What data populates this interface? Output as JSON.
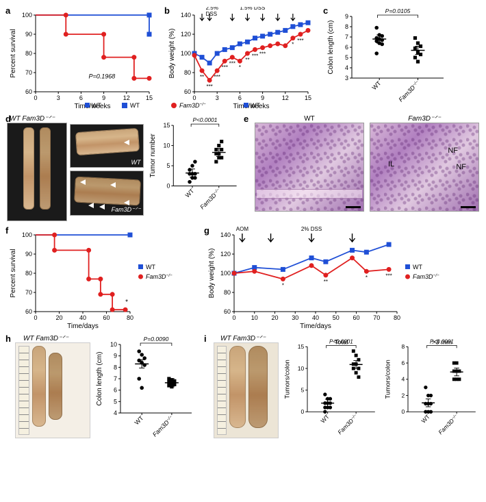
{
  "groups": {
    "wt": {
      "label": "WT",
      "color": "#1f4fd6",
      "marker": "square"
    },
    "ko": {
      "label": "Fam3D⁻ᐟ⁻",
      "label_plain": "Fam3D",
      "color": "#e02020",
      "marker": "circle"
    }
  },
  "panels": {
    "a": {
      "type": "line",
      "xlabel": "Time/weeks",
      "ylabel": "Percent survival",
      "xlim": [
        0,
        15
      ],
      "xticks": [
        0,
        3,
        6,
        9,
        12,
        15
      ],
      "ylim": [
        60,
        100
      ],
      "yticks": [
        60,
        70,
        80,
        90,
        100
      ],
      "pval_text": "P=0.1968",
      "pval_pos": [
        7,
        67
      ],
      "series": {
        "wt": [
          [
            0,
            100
          ],
          [
            15,
            100
          ],
          [
            15,
            90
          ]
        ],
        "ko": [
          [
            0,
            100
          ],
          [
            4,
            100
          ],
          [
            4,
            90
          ],
          [
            9,
            90
          ],
          [
            9,
            78
          ],
          [
            13,
            78
          ],
          [
            13,
            67
          ],
          [
            15,
            67
          ]
        ]
      },
      "marker_x": {
        "wt": [
          15
        ],
        "ko": [
          4,
          9,
          13,
          15
        ]
      }
    },
    "b": {
      "type": "line",
      "xlabel": "Time/weeks",
      "ylabel": "Body weight (%)",
      "xlim": [
        0,
        15
      ],
      "xticks": [
        0,
        3,
        6,
        9,
        12,
        15
      ],
      "ylim": [
        60,
        140
      ],
      "yticks": [
        60,
        80,
        100,
        120,
        140
      ],
      "arrows_x": [
        1,
        2,
        5,
        7,
        9,
        11,
        13
      ],
      "arrow_labels": [
        {
          "x": 1.5,
          "text": "2.5%\nDSS"
        },
        {
          "x": 6,
          "text": "1.5% DSS"
        }
      ],
      "series": {
        "wt": [
          [
            0,
            100
          ],
          [
            1,
            96
          ],
          [
            2,
            90
          ],
          [
            3,
            100
          ],
          [
            4,
            104
          ],
          [
            5,
            106
          ],
          [
            6,
            110
          ],
          [
            7,
            112
          ],
          [
            8,
            116
          ],
          [
            9,
            118
          ],
          [
            10,
            120
          ],
          [
            11,
            122
          ],
          [
            12,
            124
          ],
          [
            13,
            128
          ],
          [
            14,
            130
          ],
          [
            15,
            132
          ]
        ],
        "ko": [
          [
            0,
            98
          ],
          [
            1,
            82
          ],
          [
            2,
            72
          ],
          [
            3,
            82
          ],
          [
            4,
            92
          ],
          [
            5,
            96
          ],
          [
            6,
            92
          ],
          [
            7,
            100
          ],
          [
            8,
            104
          ],
          [
            9,
            106
          ],
          [
            10,
            108
          ],
          [
            11,
            110
          ],
          [
            12,
            108
          ],
          [
            13,
            116
          ],
          [
            14,
            120
          ],
          [
            15,
            124
          ]
        ]
      },
      "sig": [
        [
          1,
          "**"
        ],
        [
          2,
          "***"
        ],
        [
          3,
          "***"
        ],
        [
          4,
          "***"
        ],
        [
          5,
          "***"
        ],
        [
          6,
          "*"
        ],
        [
          7,
          "**"
        ],
        [
          8,
          "***"
        ],
        [
          9,
          "***"
        ],
        [
          13,
          "*"
        ],
        [
          14,
          "***"
        ]
      ]
    },
    "c": {
      "type": "scatter-cat",
      "ylabel": "Colon length (cm)",
      "ylim": [
        3,
        9
      ],
      "yticks": [
        3,
        4,
        5,
        6,
        7,
        8,
        9
      ],
      "pval_text": "P=0.0105",
      "cats": [
        "WT",
        "Fam3D⁻ᐟ⁻"
      ],
      "points": {
        "WT": [
          7.9,
          7.2,
          7.1,
          6.9,
          6.8,
          6.7,
          6.6,
          6.4,
          6.3,
          5.4
        ],
        "Fam3D⁻ᐟ⁻": [
          6.9,
          6.4,
          6.1,
          5.9,
          5.5,
          5.3,
          5.0,
          4.6
        ]
      },
      "means": {
        "WT": 6.8,
        "Fam3D⁻ᐟ⁻": 5.7
      }
    },
    "d": {
      "left_label_top": "WT Fam3D⁻ᐟ⁻",
      "right_labels": [
        "WT",
        "Fam3D⁻ᐟ⁻"
      ],
      "chart": {
        "ylabel": "Tumor number",
        "ylim": [
          0,
          15
        ],
        "yticks": [
          0,
          5,
          10,
          15
        ],
        "pval_text": "P<0.0001",
        "cats": [
          "WT",
          "Fam3D⁻ᐟ⁻"
        ],
        "points": {
          "WT": [
            1,
            2,
            2,
            3,
            3,
            3,
            4,
            5,
            6
          ],
          "Fam3D⁻ᐟ⁻": [
            6,
            7,
            7,
            8,
            8,
            9,
            9,
            10,
            11
          ]
        },
        "means": {
          "WT": 3.2,
          "Fam3D⁻ᐟ⁻": 8.3
        }
      }
    },
    "e": {
      "left_title": "WT",
      "right_title": "Fam3D⁻ᐟ⁻",
      "annot": [
        "IL",
        "NF",
        "NF"
      ]
    },
    "f": {
      "type": "line",
      "xlabel": "Time/days",
      "ylabel": "Percent survival",
      "xlim": [
        0,
        80
      ],
      "xticks": [
        0,
        20,
        40,
        60,
        80
      ],
      "ylim": [
        60,
        100
      ],
      "yticks": [
        60,
        70,
        80,
        90,
        100
      ],
      "series": {
        "wt": [
          [
            0,
            100
          ],
          [
            80,
            100
          ]
        ],
        "ko": [
          [
            0,
            100
          ],
          [
            16,
            100
          ],
          [
            16,
            92
          ],
          [
            45,
            92
          ],
          [
            45,
            77
          ],
          [
            55,
            77
          ],
          [
            55,
            69
          ],
          [
            65,
            69
          ],
          [
            65,
            61
          ],
          [
            76,
            61
          ]
        ]
      },
      "sig_text": "*",
      "sig_pos": [
        76,
        64
      ],
      "marker_x": {
        "wt": [
          80
        ],
        "ko": [
          16,
          45,
          55,
          65,
          76
        ]
      }
    },
    "g": {
      "type": "line",
      "xlabel": "Time/days",
      "ylabel": "Body weight (%)",
      "xlim": [
        0,
        80
      ],
      "xticks": [
        0,
        10,
        20,
        30,
        40,
        50,
        60,
        70,
        80
      ],
      "ylim": [
        60,
        140
      ],
      "yticks": [
        60,
        80,
        100,
        120,
        140
      ],
      "arrows": [
        {
          "x": 4,
          "label": "AOM"
        },
        {
          "x": 18,
          "label": ""
        },
        {
          "x": 38,
          "label": "2% DSS"
        },
        {
          "x": 58,
          "label": ""
        }
      ],
      "series": {
        "wt": [
          [
            0,
            100
          ],
          [
            10,
            106
          ],
          [
            24,
            104
          ],
          [
            38,
            116
          ],
          [
            45,
            112
          ],
          [
            58,
            124
          ],
          [
            65,
            122
          ],
          [
            76,
            130
          ]
        ],
        "ko": [
          [
            0,
            100
          ],
          [
            10,
            102
          ],
          [
            24,
            94
          ],
          [
            38,
            108
          ],
          [
            45,
            98
          ],
          [
            58,
            116
          ],
          [
            65,
            102
          ],
          [
            76,
            104
          ]
        ]
      },
      "sig": [
        [
          24,
          "*"
        ],
        [
          45,
          "**"
        ],
        [
          65,
          "*"
        ],
        [
          76,
          "***"
        ]
      ]
    },
    "h": {
      "photo_label": "WT Fam3D⁻ᐟ⁻",
      "chart": {
        "ylabel": "Colon length (cm)",
        "ylim": [
          4,
          10
        ],
        "yticks": [
          4,
          5,
          6,
          7,
          8,
          9,
          10
        ],
        "pval_text": "P=0.0090",
        "cats": [
          "WT",
          "Fam3D⁻ᐟ⁻"
        ],
        "points": {
          "WT": [
            9.4,
            9.1,
            8.8,
            8.6,
            8.4,
            8.2,
            7.0,
            6.2
          ],
          "Fam3D⁻ᐟ⁻": [
            7.0,
            6.9,
            6.8,
            6.7,
            6.6,
            6.5,
            6.4,
            6.3
          ]
        },
        "means": {
          "WT": 8.3,
          "Fam3D⁻ᐟ⁻": 6.65
        }
      }
    },
    "i": {
      "photo_label": "WT Fam3D⁻ᐟ⁻",
      "total": {
        "title": "Total",
        "ylabel": "Tumors/colon",
        "ylim": [
          0,
          15
        ],
        "yticks": [
          0,
          5,
          10,
          15
        ],
        "pval_text": "P<0.0001",
        "cats": [
          "WT",
          "Fam3D⁻ᐟ⁻"
        ],
        "points": {
          "WT": [
            4,
            3,
            3,
            2,
            2,
            2,
            1,
            1,
            1,
            0
          ],
          "Fam3D⁻ᐟ⁻": [
            14,
            13,
            12,
            11,
            11,
            10,
            10,
            9,
            8
          ]
        },
        "means": {
          "WT": 2.0,
          "Fam3D⁻ᐟ⁻": 10.9
        }
      },
      "large": {
        "title": ">3 mm",
        "ylabel": "Tumors/colon",
        "ylim": [
          0,
          8
        ],
        "yticks": [
          0,
          2,
          4,
          6,
          8
        ],
        "pval_text": "P<0.0001",
        "cats": [
          "WT",
          "Fam3D⁻ᐟ⁻"
        ],
        "points": {
          "WT": [
            3,
            2,
            2,
            1,
            1,
            1,
            0,
            0,
            0
          ],
          "Fam3D⁻ᐟ⁻": [
            6,
            6,
            5,
            5,
            5,
            4,
            4,
            4
          ]
        },
        "means": {
          "WT": 1.1,
          "Fam3D⁻ᐟ⁻": 4.9
        }
      }
    }
  },
  "style": {
    "axis_color": "#000000",
    "tick_fontsize": 9,
    "label_fontsize": 10,
    "line_width": 1.6,
    "marker_size": 3.2,
    "errbar_width": 4
  }
}
